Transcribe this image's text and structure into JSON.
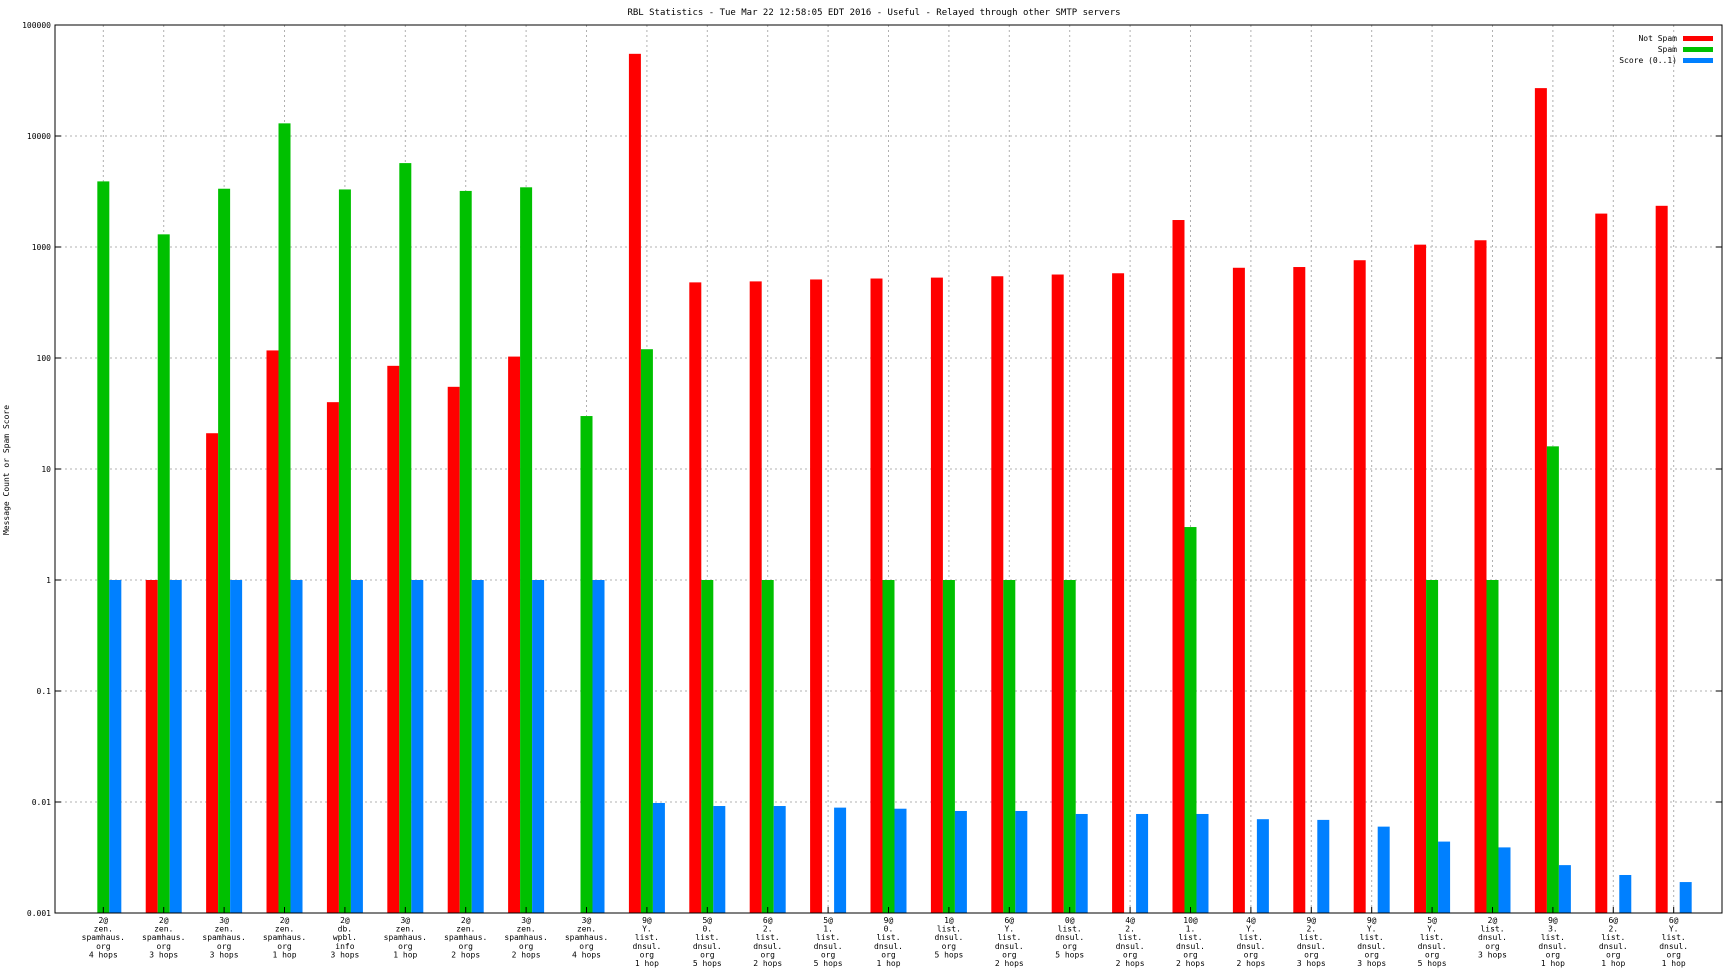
{
  "chart_data": {
    "type": "bar",
    "title": "RBL Statistics - Tue Mar 22 12:58:05 EDT 2016 - Useful - Relayed through other SMTP servers",
    "ylabel": "Message Count or Spam Score",
    "xlabel": "",
    "yscale": "log",
    "ylim": [
      0.001,
      100000
    ],
    "yticks": [
      "0.001",
      "0.01",
      "0.1",
      "1",
      "10",
      "100",
      "1000",
      "10000",
      "100000"
    ],
    "grid": true,
    "legend_position": "top-right",
    "categories": [
      "2@\nzen.\nspamhaus.\norg\n4 hops",
      "2@\nzen.\nspamhaus.\norg\n3 hops",
      "3@\nzen.\nspamhaus.\norg\n3 hops",
      "2@\nzen.\nspamhaus.\norg\n1 hop",
      "2@\ndb.\nwpbl.\ninfo\n3 hops",
      "3@\nzen.\nspamhaus.\norg\n1 hop",
      "2@\nzen.\nspamhaus.\norg\n2 hops",
      "3@\nzen.\nspamhaus.\norg\n2 hops",
      "3@\nzen.\nspamhaus.\norg\n4 hops",
      "9@\nY.\nlist.\ndnsul.\norg\n1 hop",
      "5@\n0.\nlist.\ndnsul.\norg\n5 hops",
      "6@\n2.\nlist.\ndnsul.\norg\n2 hops",
      "5@\n1.\nlist.\ndnsul.\norg\n5 hops",
      "9@\n0.\nlist.\ndnsul.\norg\n1 hop",
      "1@\nlist.\ndnsul.\norg\n5 hops",
      "6@\nY.\nlist.\ndnsul.\norg\n2 hops",
      "0@\nlist.\ndnsul.\norg\n5 hops",
      "4@\n2.\nlist.\ndnsul.\norg\n2 hops",
      "10@\n1.\nlist.\ndnsul.\norg\n2 hops",
      "4@\nY.\nlist.\ndnsul.\norg\n2 hops",
      "9@\n2.\nlist.\ndnsul.\norg\n3 hops",
      "9@\nY.\nlist.\ndnsul.\norg\n3 hops",
      "5@\nY.\nlist.\ndnsul.\norg\n5 hops",
      "2@\nlist.\ndnsul.\norg\n3 hops",
      "9@\n3.\nlist.\ndnsul.\norg\n1 hop",
      "6@\n2.\nlist.\ndnsul.\norg\n1 hop",
      "6@\nY.\nlist.\ndnsul.\norg\n1 hop"
    ],
    "series": [
      {
        "name": "Not Spam",
        "color": "#ff0000",
        "values": [
          null,
          1,
          21,
          117,
          40,
          85,
          55,
          103,
          null,
          55000,
          480,
          490,
          510,
          520,
          530,
          545,
          565,
          580,
          1750,
          650,
          660,
          760,
          1050,
          1150,
          27000,
          2000,
          2350
        ]
      },
      {
        "name": "Spam",
        "color": "#00c000",
        "values": [
          3900,
          1300,
          3350,
          13000,
          3300,
          5700,
          3200,
          3450,
          30,
          120,
          1,
          1,
          null,
          1,
          1,
          1,
          1,
          null,
          3,
          null,
          null,
          null,
          1,
          1,
          16,
          null,
          null
        ]
      },
      {
        "name": "Score (0..1)",
        "color": "#0080ff",
        "values": [
          1,
          1,
          1,
          1,
          1,
          1,
          1,
          1,
          1,
          0.0098,
          0.0092,
          0.0092,
          0.0089,
          0.0087,
          0.0083,
          0.0083,
          0.0078,
          0.0078,
          0.0078,
          0.007,
          0.0069,
          0.006,
          0.0044,
          0.0039,
          0.0027,
          0.0022,
          0.0019
        ]
      }
    ]
  }
}
